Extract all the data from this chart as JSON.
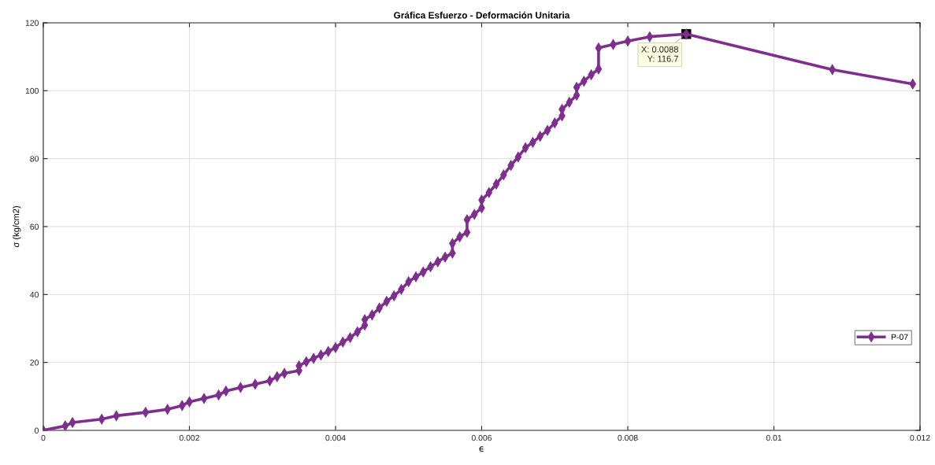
{
  "chart_data": {
    "type": "line",
    "title": "Gráfica Esfuerzo - Deformación Unitaria",
    "xlabel": "ϵ",
    "ylabel": "σ (kg/cm2)",
    "x": [
      0,
      0.0003,
      0.0004,
      0.0008,
      0.001,
      0.0014,
      0.0017,
      0.0019,
      0.002,
      0.0022,
      0.0024,
      0.0025,
      0.0027,
      0.0029,
      0.0031,
      0.0032,
      0.0033,
      0.0035,
      0.0035,
      0.0036,
      0.0037,
      0.0038,
      0.0039,
      0.004,
      0.0041,
      0.0042,
      0.0043,
      0.0044,
      0.0044,
      0.0045,
      0.0046,
      0.0047,
      0.0048,
      0.0049,
      0.005,
      0.0051,
      0.0052,
      0.0053,
      0.0054,
      0.0055,
      0.0056,
      0.0056,
      0.0057,
      0.0058,
      0.0058,
      0.0059,
      0.006,
      0.006,
      0.0061,
      0.0062,
      0.0063,
      0.0064,
      0.0065,
      0.0066,
      0.0067,
      0.0068,
      0.0069,
      0.007,
      0.0071,
      0.0071,
      0.0072,
      0.0073,
      0.0073,
      0.0074,
      0.0075,
      0.0076,
      0.0076,
      0.0078,
      0.008,
      0.0083,
      0.0088,
      0.0108,
      0.0119
    ],
    "series": [
      {
        "name": "P-07",
        "color": "#7e2f8e",
        "values": [
          0,
          1.3,
          2.3,
          3.3,
          4.3,
          5.3,
          6.2,
          7.3,
          8.4,
          9.4,
          10.4,
          11.6,
          12.6,
          13.6,
          14.6,
          15.8,
          16.8,
          17.6,
          19,
          20.2,
          21.2,
          22.2,
          23.2,
          24.4,
          26,
          27.3,
          29,
          31,
          32.6,
          34,
          36,
          38,
          39.6,
          41.5,
          43.8,
          45.2,
          46.6,
          48.2,
          49.6,
          51,
          52.2,
          55,
          57,
          58.3,
          62,
          63.6,
          65.5,
          67.8,
          70,
          72.5,
          75.2,
          78,
          80.5,
          83.2,
          84.8,
          86.6,
          88.3,
          90.5,
          92.6,
          94.5,
          96.6,
          98.7,
          101,
          102.8,
          104.7,
          106.4,
          112.6,
          113.6,
          114.6,
          115.9,
          116.7,
          106.2,
          102
        ]
      }
    ],
    "xlim": [
      0,
      0.012
    ],
    "ylim": [
      0,
      120
    ],
    "xticks": [
      0,
      0.002,
      0.004,
      0.006,
      0.008,
      0.01,
      0.012
    ],
    "yticks": [
      0,
      20,
      40,
      60,
      80,
      100,
      120
    ],
    "grid": true,
    "legend": "bottom right",
    "marker": "diamond",
    "line_style": "solid",
    "annotations": [
      {
        "text": "X: 0.0088\nY: 116.7",
        "x": 0.0088,
        "y": 116.7
      }
    ]
  }
}
